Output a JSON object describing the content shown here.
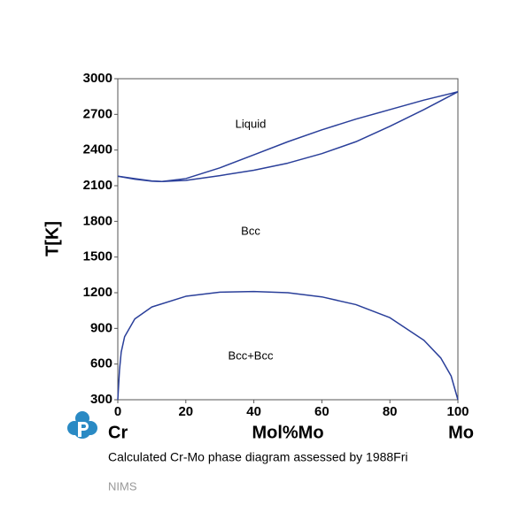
{
  "chart_data": {
    "type": "line",
    "xlabel": "Mol%Mo",
    "ylabel": "T[K]",
    "left_component": "Cr",
    "right_component": "Mo",
    "annotations": [
      "Liquid",
      "Bcc",
      "Bcc+Bcc"
    ],
    "caption": "Calculated Cr-Mo phase diagram assessed by 1988Fri",
    "source": "NIMS",
    "xlim": [
      0,
      100
    ],
    "xticks": [
      0,
      20,
      40,
      60,
      80,
      100
    ],
    "ylim": [
      300,
      3000
    ],
    "yticks": [
      300,
      600,
      900,
      1200,
      1500,
      1800,
      2100,
      2400,
      2700,
      3000
    ],
    "series": [
      {
        "color": "#2a3f9a",
        "x": [
          0,
          5,
          10,
          13,
          20,
          30,
          40,
          50,
          60,
          70,
          80,
          90,
          100
        ],
        "values": [
          2180,
          2160,
          2140,
          2135,
          2160,
          2250,
          2360,
          2470,
          2570,
          2660,
          2740,
          2820,
          2890
        ]
      },
      {
        "color": "#2a3f9a",
        "x": [
          0,
          5,
          10,
          13,
          20,
          30,
          40,
          50,
          60,
          70,
          80,
          90,
          100
        ],
        "values": [
          2180,
          2155,
          2138,
          2135,
          2145,
          2185,
          2230,
          2290,
          2370,
          2470,
          2600,
          2740,
          2890
        ]
      },
      {
        "color": "#2a3f9a",
        "x": [
          0,
          0.5,
          1,
          2,
          5,
          10,
          20,
          30,
          40,
          50,
          60,
          70,
          80,
          90,
          95,
          98,
          100
        ],
        "values": [
          300,
          550,
          700,
          830,
          980,
          1080,
          1170,
          1205,
          1210,
          1200,
          1165,
          1100,
          990,
          800,
          650,
          500,
          300
        ]
      }
    ]
  }
}
